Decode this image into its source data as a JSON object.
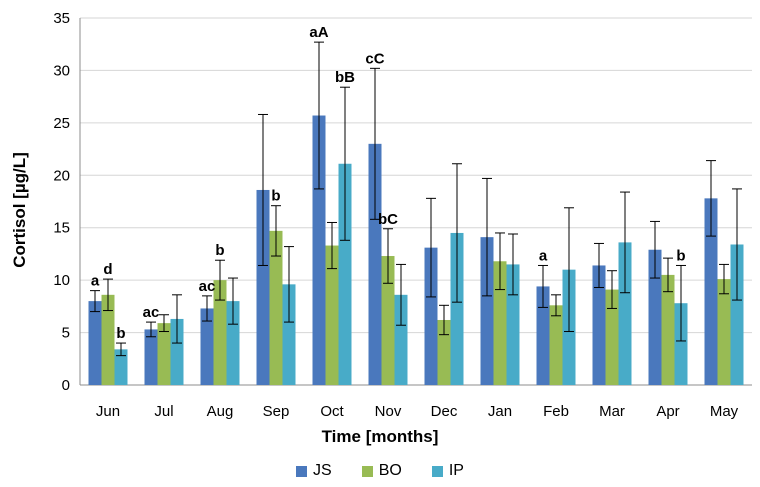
{
  "chart_data": {
    "type": "bar",
    "xlabel": "Time [months]",
    "ylabel": "Cortisol [µg/L]",
    "ylim": [
      0,
      35
    ],
    "yticks": [
      0,
      5,
      10,
      15,
      20,
      25,
      30,
      35
    ],
    "grid": true,
    "legend_position": "bottom",
    "categories": [
      "Jun",
      "Jul",
      "Aug",
      "Sep",
      "Oct",
      "Nov",
      "Dec",
      "Jan",
      "Feb",
      "Mar",
      "Apr",
      "May"
    ],
    "series": [
      {
        "name": "JS",
        "color": "#4a78bd",
        "values": [
          8.0,
          5.3,
          7.3,
          18.6,
          25.7,
          23.0,
          13.1,
          14.1,
          9.4,
          11.4,
          12.9,
          17.8
        ],
        "errors": [
          1.0,
          0.7,
          1.2,
          7.2,
          7.0,
          7.2,
          4.7,
          5.6,
          2.0,
          2.1,
          2.7,
          3.6
        ],
        "labels": [
          "a",
          "ac",
          "ac",
          "",
          "aA",
          "cC",
          "",
          "",
          "a",
          "",
          "",
          ""
        ]
      },
      {
        "name": "BO",
        "color": "#98bb54",
        "values": [
          8.6,
          5.9,
          10.0,
          14.7,
          13.3,
          12.3,
          6.2,
          11.8,
          7.6,
          9.1,
          10.5,
          10.1
        ],
        "errors": [
          1.5,
          0.8,
          1.9,
          2.4,
          2.2,
          2.6,
          1.4,
          2.7,
          1.0,
          1.8,
          1.6,
          1.4
        ],
        "labels": [
          "d",
          "",
          "b",
          "b",
          "",
          "bC",
          "",
          "",
          "",
          "",
          "",
          ""
        ]
      },
      {
        "name": "IP",
        "color": "#48abc8",
        "values": [
          3.4,
          6.3,
          8.0,
          9.6,
          21.1,
          8.6,
          14.5,
          11.5,
          11.0,
          13.6,
          7.8,
          13.4
        ],
        "errors": [
          0.6,
          2.3,
          2.2,
          3.6,
          7.3,
          2.9,
          6.6,
          2.9,
          5.9,
          4.8,
          3.6,
          5.3
        ],
        "labels": [
          "b",
          "",
          "",
          "",
          "bB",
          "",
          "",
          "",
          "",
          "",
          "b",
          ""
        ]
      }
    ]
  }
}
